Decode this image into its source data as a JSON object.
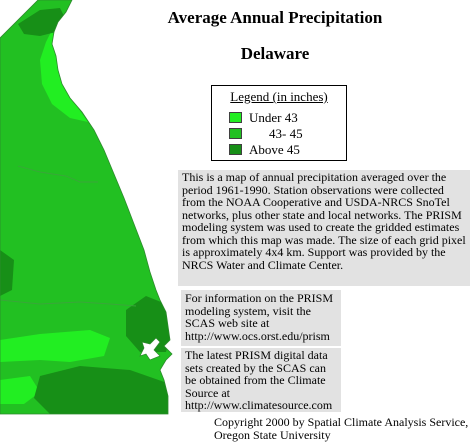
{
  "map": {
    "title": "Average Annual Precipitation",
    "state": "Delaware"
  },
  "legend": {
    "title": "Legend (in inches)",
    "items": [
      {
        "label": "Under 43",
        "color": "#22ee22"
      },
      {
        "label": "43- 45",
        "color": "#22c022"
      },
      {
        "label": "Above 45",
        "color": "#178f17"
      }
    ]
  },
  "description": "This is a map of annual precipitation averaged over the period 1961-1990. Station observations were collected from the NOAA Cooperative and USDA-NRCS SnoTel networks, plus other state and local networks.  The PRISM modeling system was used to create the gridded estimates from which this map was made.  The size of each grid pixel is approximately 4x4 km.  Support was provided by the NRCS Water and Climate Center.",
  "info": {
    "text": "For information on the PRISM modeling system, visit the SCAS web site at",
    "url": "http://www.ocs.orst.edu/prism"
  },
  "data_source": {
    "text": "The latest PRISM digital data sets created by the SCAS can be obtained from the Climate Source at",
    "url": "http://www.climatesource.com"
  },
  "copyright": {
    "line1": "Copyright 2000 by Spatial Climate Analysis Service,",
    "line2": "Oregon State University"
  }
}
